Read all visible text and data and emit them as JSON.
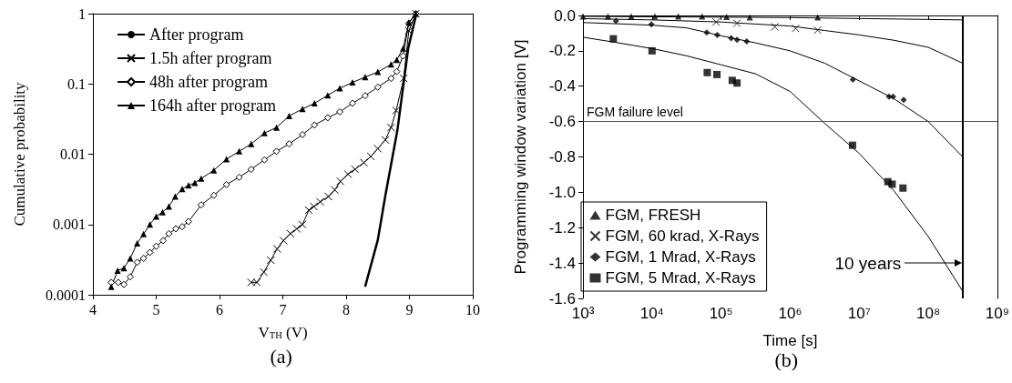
{
  "chart_data": [
    {
      "type": "line",
      "xlabel": "V$_{TH}$ (V)",
      "ylabel": "Cumulative probability",
      "annotations": [
        "(a)"
      ],
      "log": "y",
      "grid": false,
      "legend": "top left",
      "xlim": [
        4,
        10
      ],
      "xticks": [
        4,
        5,
        6,
        7,
        8,
        9,
        10
      ],
      "ylim": [
        0.0001,
        1
      ],
      "yticks": [
        0.0001,
        0.001,
        0.01,
        0.1,
        1
      ],
      "series": [
        {
          "name": "After program",
          "color": "#000000",
          "marker": "none",
          "x": [
            8.3,
            8.5,
            8.62,
            8.81,
            8.98,
            9.11
          ],
          "values": [
            0.00013,
            0.0006,
            0.0026,
            0.022,
            0.32,
            1
          ]
        },
        {
          "name": "1.5h after program",
          "color": "#000000",
          "marker": "cross",
          "x": [
            6.5,
            6.59,
            6.7,
            6.81,
            6.91,
            7.01,
            7.12,
            7.22,
            7.31,
            7.41,
            7.49,
            7.59,
            7.72,
            7.82,
            7.91,
            8.03,
            8.14,
            8.28,
            8.39,
            8.5,
            8.62,
            8.71,
            8.79,
            8.91,
            8.99,
            9.1
          ],
          "values": [
            0.00015,
            0.00015,
            0.00021,
            0.00031,
            0.00045,
            0.00059,
            0.00074,
            0.00087,
            0.001,
            0.0016,
            0.0018,
            0.0021,
            0.0025,
            0.0031,
            0.0041,
            0.0052,
            0.0061,
            0.0076,
            0.0093,
            0.012,
            0.016,
            0.024,
            0.042,
            0.12,
            0.57,
            1
          ]
        },
        {
          "name": "48h after program",
          "color": "#000000",
          "marker": "diamond",
          "x": [
            4.29,
            4.4,
            4.49,
            4.59,
            4.7,
            4.8,
            4.9,
            5.0,
            5.11,
            5.2,
            5.31,
            5.41,
            5.51,
            5.71,
            5.91,
            6.11,
            6.31,
            6.5,
            6.71,
            6.9,
            7.1,
            7.31,
            7.5,
            7.71,
            7.9,
            8.1,
            8.3,
            8.5,
            8.71,
            8.8,
            8.9,
            8.99,
            9.1
          ],
          "values": [
            0.00015,
            0.00015,
            0.00014,
            0.00018,
            0.00029,
            0.00033,
            0.0004,
            0.00049,
            0.00059,
            0.00074,
            0.00087,
            0.00093,
            0.0011,
            0.0019,
            0.0026,
            0.0037,
            0.0047,
            0.0061,
            0.0083,
            0.011,
            0.014,
            0.019,
            0.026,
            0.033,
            0.04,
            0.053,
            0.068,
            0.09,
            0.12,
            0.15,
            0.25,
            0.73,
            1
          ]
        },
        {
          "name": "164h after program",
          "color": "#000000",
          "marker": "triangle",
          "x": [
            4.29,
            4.39,
            4.49,
            4.59,
            4.7,
            4.8,
            4.9,
            5.0,
            5.1,
            5.2,
            5.3,
            5.41,
            5.51,
            5.61,
            5.71,
            5.91,
            6.11,
            6.31,
            6.5,
            6.71,
            6.9,
            7.1,
            7.31,
            7.5,
            7.71,
            7.9,
            8.1,
            8.3,
            8.5,
            8.71,
            8.8,
            8.9,
            8.99,
            9.1
          ],
          "values": [
            0.00013,
            0.00022,
            0.00024,
            0.00033,
            0.00054,
            0.00073,
            0.001,
            0.0013,
            0.0015,
            0.0018,
            0.0025,
            0.0032,
            0.0036,
            0.0039,
            0.0045,
            0.0059,
            0.0085,
            0.011,
            0.014,
            0.02,
            0.024,
            0.035,
            0.044,
            0.053,
            0.069,
            0.087,
            0.105,
            0.125,
            0.148,
            0.19,
            0.22,
            0.32,
            0.75,
            1
          ]
        }
      ]
    },
    {
      "type": "scatter",
      "xlabel": "Time [s]",
      "ylabel": "Programming window variation [V]",
      "annotations": [
        "(b)",
        "10 years"
      ],
      "log": "x",
      "grid": false,
      "legend": "bottom left",
      "xlim": [
        1000,
        1000000000
      ],
      "xticks": [
        {
          "value": 1000,
          "label": "10³"
        },
        {
          "value": 10000,
          "label": "10⁴"
        },
        {
          "value": 100000,
          "label": "10⁵"
        },
        {
          "value": 1000000,
          "label": "10⁶"
        },
        {
          "value": 10000000,
          "label": "10⁷"
        },
        {
          "value": 100000000,
          "label": "10⁸"
        },
        {
          "value": 1000000000,
          "label": "10⁹"
        }
      ],
      "ylim": [
        -1.6,
        0
      ],
      "yticks": [
        -1.6,
        -1.4,
        -1.2,
        {
          "value": -1.0,
          "label": "-1.0"
        },
        -0.8,
        -0.6,
        -0.4,
        -0.2,
        {
          "value": 0,
          "label": "0.0"
        }
      ],
      "ref_lines": [
        {
          "axis": "y",
          "value": -0.6,
          "label": "FGM failure level",
          "color": "#555555"
        },
        {
          "axis": "x",
          "value": 315000000,
          "color": "#000000"
        }
      ],
      "series": [
        {
          "name": "FGM, FRESH",
          "color": "#000000",
          "marker": "triangle",
          "x": [
            1000,
            2300,
            5000,
            11000,
            24000,
            53000,
            120000,
            260000,
            2500000
          ],
          "values": [
            -0.005,
            -0.005,
            -0.005,
            -0.005,
            -0.005,
            -0.005,
            -0.008,
            -0.01,
            -0.01
          ]
        },
        {
          "name": "FGM, 60 krad, X-Rays",
          "color": "#000000",
          "marker": "cross",
          "x": [
            85000,
            170000,
            600000,
            1200000,
            2500000
          ],
          "values": [
            -0.037,
            -0.044,
            -0.064,
            -0.073,
            -0.083
          ]
        },
        {
          "name": "FGM, 1 Mrad, X-Rays",
          "color": "#000000",
          "marker": "diamond",
          "x": [
            3000,
            9800,
            62000,
            88000,
            140000,
            170000,
            235000,
            8100000,
            27000000,
            31000000,
            44000000
          ],
          "values": [
            -0.031,
            -0.05,
            -0.097,
            -0.11,
            -0.128,
            -0.138,
            -0.147,
            -0.363,
            -0.459,
            -0.459,
            -0.477
          ]
        },
        {
          "name": "FGM, 5 Mrad, X-Rays",
          "color": "#000000",
          "marker": "square",
          "x": [
            2750,
            10000,
            63000,
            87000,
            145000,
            170000,
            8000000,
            26000000,
            30000000,
            43000000
          ],
          "values": [
            -0.132,
            -0.2,
            -0.323,
            -0.334,
            -0.367,
            -0.382,
            -0.734,
            -0.94,
            -0.954,
            -0.976
          ]
        },
        {
          "type": "line",
          "color": "#000000",
          "marker": "none",
          "x": [
            1000,
            1000000,
            315000000
          ],
          "values": [
            -0.005,
            -0.012,
            -0.025
          ]
        },
        {
          "type": "line",
          "color": "#000000",
          "marker": "none",
          "x": [
            1000,
            10000,
            100000,
            1000000,
            3160000,
            10000000,
            31600000,
            100000000,
            315000000
          ],
          "values": [
            -0.018,
            -0.025,
            -0.037,
            -0.06,
            -0.085,
            -0.11,
            -0.14,
            -0.18,
            -0.27
          ]
        },
        {
          "type": "line",
          "color": "#000000",
          "marker": "none",
          "x": [
            1000,
            3160,
            10000,
            31600,
            100000,
            316000,
            1000000,
            3160000,
            10000000,
            31600000,
            100000000,
            315000000
          ],
          "values": [
            -0.04,
            -0.047,
            -0.055,
            -0.07,
            -0.115,
            -0.155,
            -0.2,
            -0.27,
            -0.37,
            -0.47,
            -0.6,
            -0.8
          ]
        },
        {
          "type": "line",
          "color": "#000000",
          "marker": "none",
          "x": [
            1000,
            3160,
            10000,
            31600,
            100000,
            316000,
            1000000,
            3160000,
            10000000,
            31600000,
            100000000,
            315000000
          ],
          "values": [
            -0.123,
            -0.154,
            -0.187,
            -0.228,
            -0.279,
            -0.33,
            -0.43,
            -0.61,
            -0.78,
            -0.99,
            -1.25,
            -1.56
          ]
        }
      ]
    }
  ]
}
